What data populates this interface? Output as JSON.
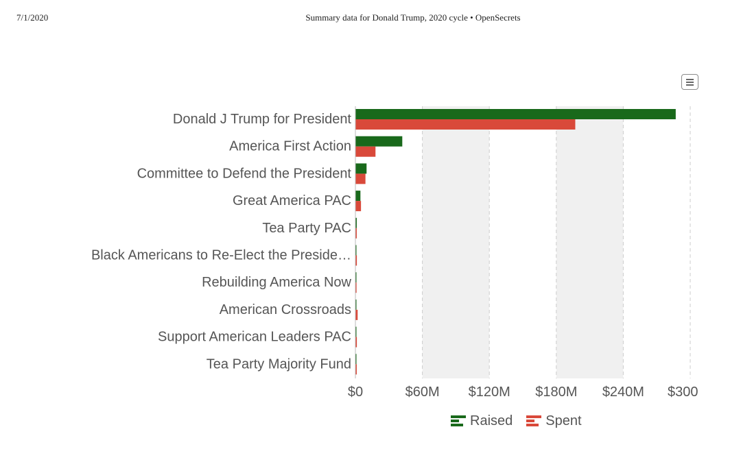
{
  "header": {
    "date": "7/1/2020",
    "title": "Summary data for Donald Trump, 2020 cycle • OpenSecrets"
  },
  "menu_icon": "hamburger-menu-icon",
  "legend": {
    "raised_label": "Raised",
    "spent_label": "Spent"
  },
  "colors": {
    "raised": "#19691b",
    "spent": "#d9493a",
    "band": "#f0f0f0",
    "grid": "#cccccc",
    "axis_text": "#555555"
  },
  "chart_data": {
    "type": "bar",
    "orientation": "horizontal",
    "categories": [
      "Donald J Trump for President",
      "America First Action",
      "Committee to Defend the President",
      "Great America PAC",
      "Tea Party PAC",
      "Black Americans to Re-Elect the Preside…",
      "Rebuilding America Now",
      "American Crossroads",
      "Support American Leaders PAC",
      "Tea Party Majority Fund"
    ],
    "series": [
      {
        "name": "Raised",
        "color": "#19691b",
        "values": [
          287,
          42,
          10,
          4.5,
          1.2,
          0.8,
          0.8,
          0.8,
          0.8,
          0.9
        ]
      },
      {
        "name": "Spent",
        "color": "#d9493a",
        "values": [
          197,
          18,
          9,
          5,
          1.2,
          1.3,
          1.0,
          2.0,
          1.3,
          1.2
        ]
      }
    ],
    "value_unit": "$M",
    "xlim": [
      0,
      300
    ],
    "xticks": [
      0,
      60,
      120,
      180,
      240,
      300
    ],
    "xtick_labels": [
      "$0",
      "$60M",
      "$120M",
      "$180M",
      "$240M",
      "$300"
    ],
    "alternating_bands": true,
    "grid": "vertical dashed",
    "legend_position": "bottom"
  }
}
